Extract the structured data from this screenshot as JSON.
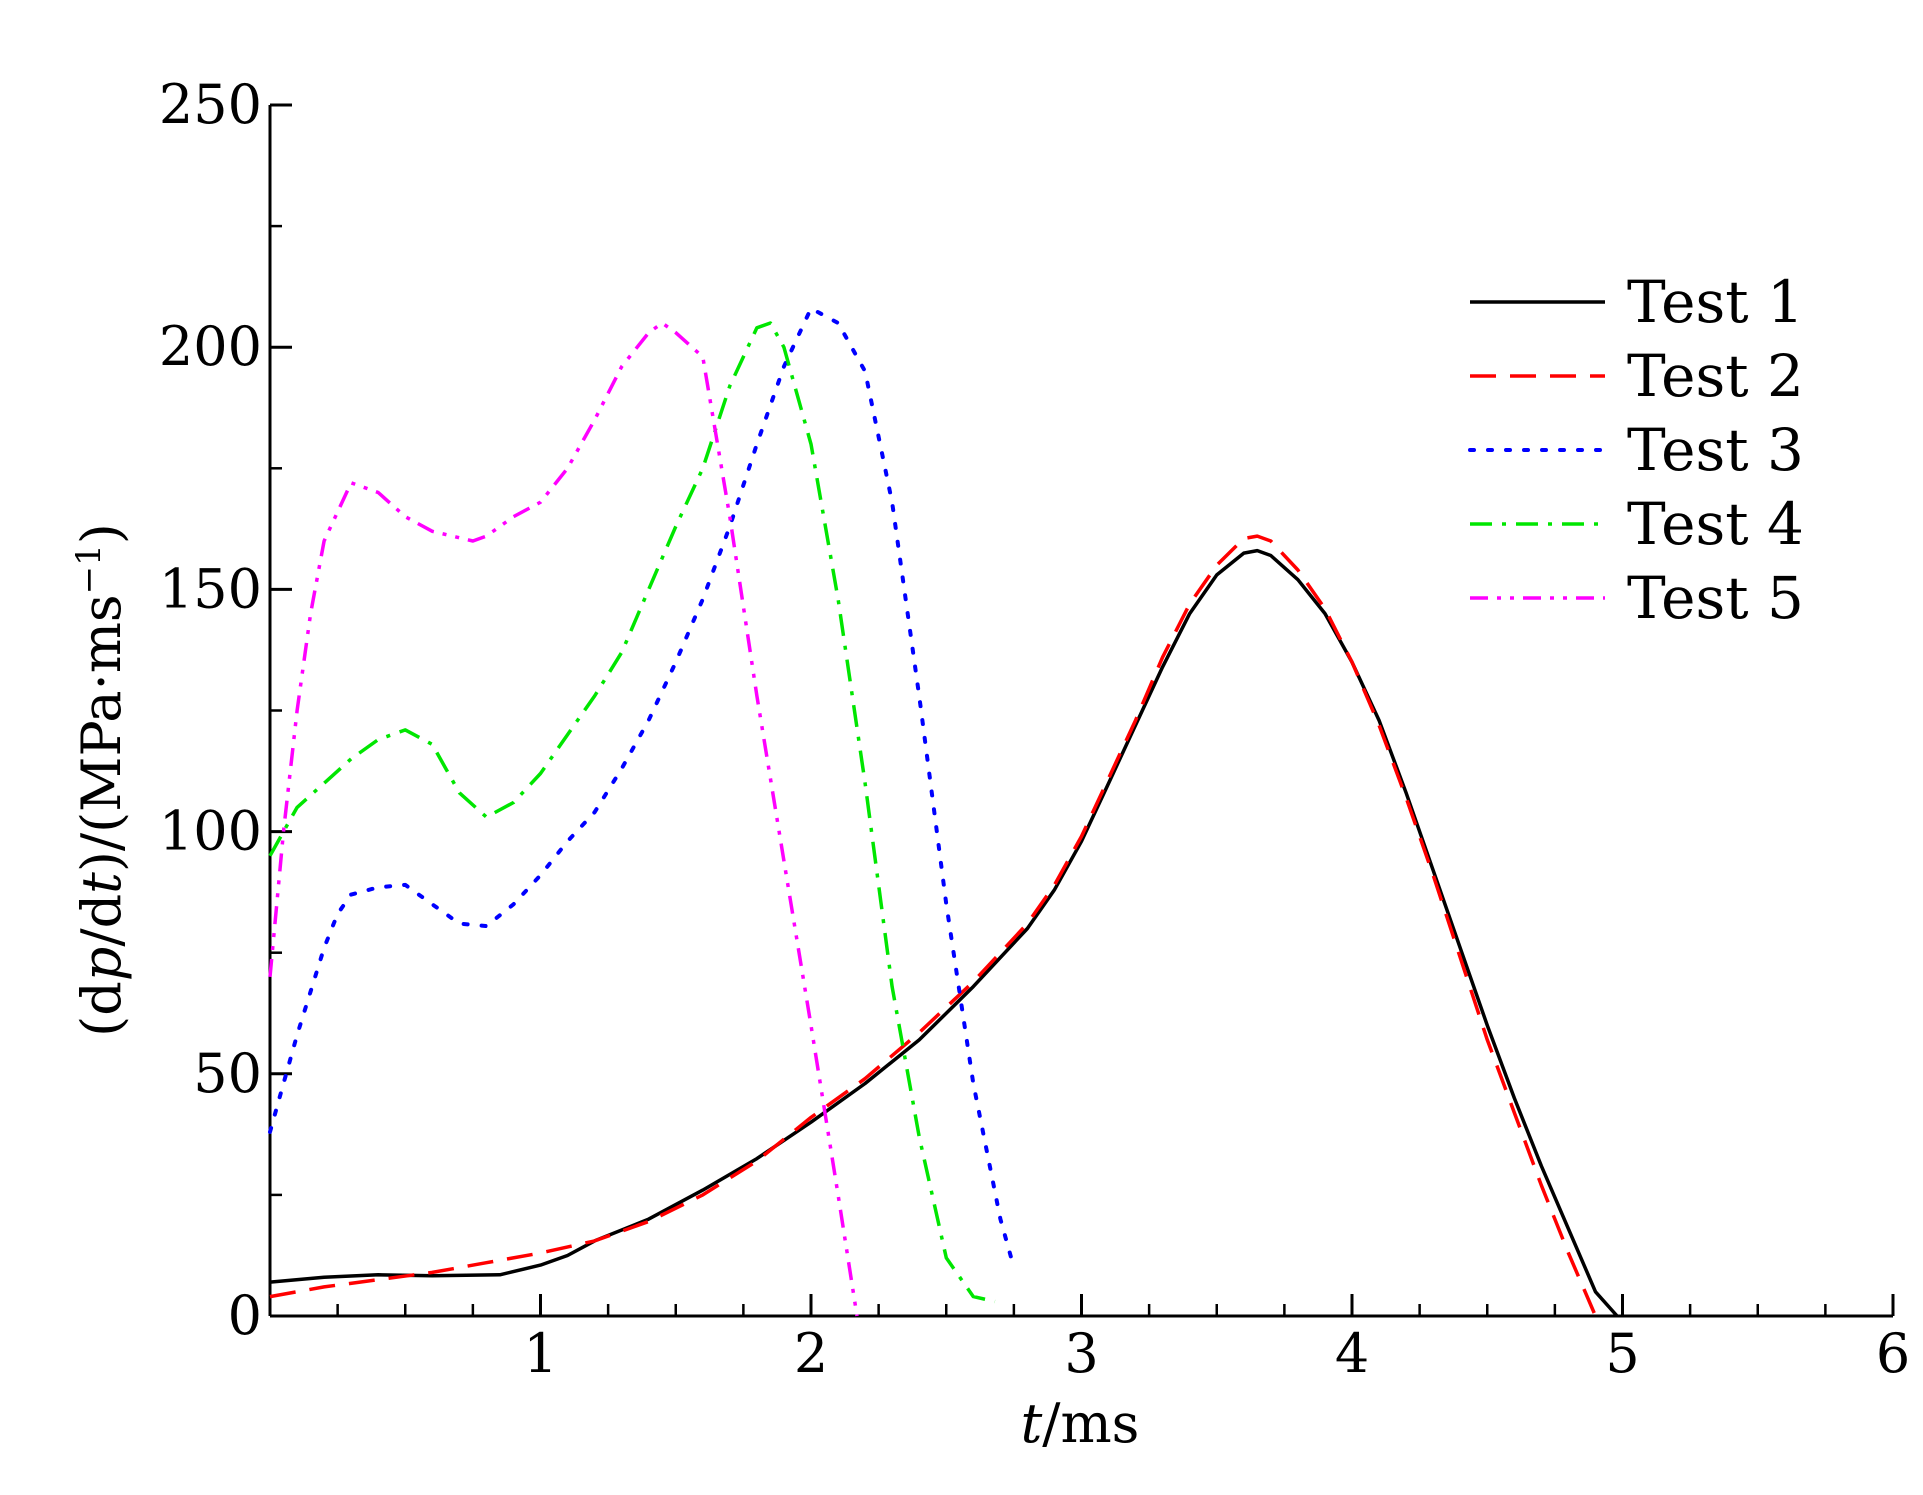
{
  "chart_data": {
    "type": "line",
    "title": "",
    "xlabel": {
      "italic": "t",
      "rest": "/ms"
    },
    "ylabel": {
      "part1": "(d",
      "italic1": "p",
      "part2": "/d",
      "italic2": "t",
      "part3": ")/(MPa·ms",
      "sup": "−1",
      "part4": ")"
    },
    "xlim": [
      0,
      6
    ],
    "ylim": [
      0,
      250
    ],
    "xticks": [
      1,
      2,
      3,
      4,
      5,
      6
    ],
    "yticks": [
      0,
      50,
      100,
      150,
      200,
      250
    ],
    "x_minor_step": 0.25,
    "y_minor_step": 25,
    "grid": false,
    "legend_position": "top-right",
    "series": [
      {
        "name": "Test 1",
        "color": "#000000",
        "dash": "solid",
        "points": [
          [
            0,
            7
          ],
          [
            0.2,
            8
          ],
          [
            0.4,
            8.5
          ],
          [
            0.6,
            8.3
          ],
          [
            0.85,
            8.5
          ],
          [
            1.0,
            10.5
          ],
          [
            1.1,
            12.5
          ],
          [
            1.2,
            15.5
          ],
          [
            1.4,
            20
          ],
          [
            1.6,
            26
          ],
          [
            1.8,
            32.5
          ],
          [
            2.0,
            40
          ],
          [
            2.2,
            48
          ],
          [
            2.4,
            57
          ],
          [
            2.6,
            68
          ],
          [
            2.8,
            80
          ],
          [
            2.9,
            88
          ],
          [
            3.0,
            98
          ],
          [
            3.1,
            110
          ],
          [
            3.2,
            122
          ],
          [
            3.3,
            134
          ],
          [
            3.4,
            145
          ],
          [
            3.5,
            153
          ],
          [
            3.6,
            157.5
          ],
          [
            3.65,
            158
          ],
          [
            3.7,
            157
          ],
          [
            3.8,
            152
          ],
          [
            3.9,
            145
          ],
          [
            4.0,
            135
          ],
          [
            4.1,
            123
          ],
          [
            4.2,
            108
          ],
          [
            4.3,
            92
          ],
          [
            4.4,
            76
          ],
          [
            4.5,
            60
          ],
          [
            4.6,
            45
          ],
          [
            4.7,
            31
          ],
          [
            4.8,
            18
          ],
          [
            4.9,
            5
          ],
          [
            4.98,
            0
          ]
        ]
      },
      {
        "name": "Test 2",
        "color": "#ff0000",
        "dash": "dashed",
        "points": [
          [
            0,
            4
          ],
          [
            0.2,
            6
          ],
          [
            0.4,
            7.5
          ],
          [
            0.6,
            9
          ],
          [
            0.8,
            11
          ],
          [
            1.0,
            13
          ],
          [
            1.2,
            15.5
          ],
          [
            1.4,
            19.5
          ],
          [
            1.6,
            25
          ],
          [
            1.8,
            32
          ],
          [
            2.0,
            41
          ],
          [
            2.2,
            49
          ],
          [
            2.4,
            58.5
          ],
          [
            2.6,
            69
          ],
          [
            2.8,
            81
          ],
          [
            2.9,
            89
          ],
          [
            3.0,
            99
          ],
          [
            3.1,
            111
          ],
          [
            3.2,
            123
          ],
          [
            3.3,
            136
          ],
          [
            3.4,
            147
          ],
          [
            3.5,
            155
          ],
          [
            3.6,
            160.5
          ],
          [
            3.65,
            161
          ],
          [
            3.7,
            160
          ],
          [
            3.8,
            154
          ],
          [
            3.9,
            146
          ],
          [
            4.0,
            135
          ],
          [
            4.1,
            122
          ],
          [
            4.2,
            107
          ],
          [
            4.3,
            91
          ],
          [
            4.4,
            74
          ],
          [
            4.5,
            57
          ],
          [
            4.6,
            42
          ],
          [
            4.7,
            27
          ],
          [
            4.8,
            13
          ],
          [
            4.9,
            0
          ]
        ]
      },
      {
        "name": "Test 3",
        "color": "#0000ff",
        "dash": "dotted",
        "points": [
          [
            0,
            38
          ],
          [
            0.05,
            48
          ],
          [
            0.1,
            58
          ],
          [
            0.15,
            67
          ],
          [
            0.2,
            76
          ],
          [
            0.25,
            83
          ],
          [
            0.3,
            87
          ],
          [
            0.4,
            88.5
          ],
          [
            0.5,
            89
          ],
          [
            0.55,
            87
          ],
          [
            0.6,
            85
          ],
          [
            0.7,
            81
          ],
          [
            0.8,
            80.5
          ],
          [
            0.9,
            85
          ],
          [
            1.0,
            91
          ],
          [
            1.1,
            98
          ],
          [
            1.2,
            104
          ],
          [
            1.3,
            113
          ],
          [
            1.4,
            123
          ],
          [
            1.5,
            135
          ],
          [
            1.6,
            148
          ],
          [
            1.7,
            163
          ],
          [
            1.8,
            180
          ],
          [
            1.9,
            196
          ],
          [
            2.0,
            208
          ],
          [
            2.1,
            205
          ],
          [
            2.2,
            195
          ],
          [
            2.3,
            168
          ],
          [
            2.4,
            128
          ],
          [
            2.5,
            85
          ],
          [
            2.6,
            48
          ],
          [
            2.7,
            20
          ],
          [
            2.75,
            10
          ]
        ]
      },
      {
        "name": "Test 4",
        "color": "#00e600",
        "dash": "dashdot",
        "points": [
          [
            0,
            95
          ],
          [
            0.05,
            100
          ],
          [
            0.1,
            105
          ],
          [
            0.2,
            110
          ],
          [
            0.3,
            115
          ],
          [
            0.4,
            119
          ],
          [
            0.5,
            121
          ],
          [
            0.6,
            118
          ],
          [
            0.65,
            113
          ],
          [
            0.7,
            108
          ],
          [
            0.8,
            103
          ],
          [
            0.9,
            106
          ],
          [
            1.0,
            112
          ],
          [
            1.1,
            120
          ],
          [
            1.2,
            128
          ],
          [
            1.3,
            137
          ],
          [
            1.4,
            150
          ],
          [
            1.5,
            163
          ],
          [
            1.6,
            175
          ],
          [
            1.7,
            192
          ],
          [
            1.8,
            204
          ],
          [
            1.85,
            205
          ],
          [
            1.9,
            200
          ],
          [
            2.0,
            180
          ],
          [
            2.1,
            148
          ],
          [
            2.2,
            110
          ],
          [
            2.3,
            68
          ],
          [
            2.4,
            37
          ],
          [
            2.5,
            12
          ],
          [
            2.6,
            4
          ],
          [
            2.68,
            3
          ]
        ]
      },
      {
        "name": "Test 5",
        "color": "#ff00ff",
        "dash": "dashdotdot",
        "points": [
          [
            0,
            70
          ],
          [
            0.05,
            100
          ],
          [
            0.1,
            125
          ],
          [
            0.15,
            145
          ],
          [
            0.2,
            160
          ],
          [
            0.3,
            172
          ],
          [
            0.4,
            170
          ],
          [
            0.5,
            165
          ],
          [
            0.6,
            162
          ],
          [
            0.75,
            160
          ],
          [
            0.8,
            161
          ],
          [
            0.9,
            165
          ],
          [
            1.0,
            168
          ],
          [
            1.1,
            175
          ],
          [
            1.2,
            185
          ],
          [
            1.3,
            196
          ],
          [
            1.4,
            203
          ],
          [
            1.45,
            205
          ],
          [
            1.5,
            203
          ],
          [
            1.6,
            198
          ],
          [
            1.7,
            165
          ],
          [
            1.8,
            128
          ],
          [
            1.9,
            94
          ],
          [
            2.0,
            60
          ],
          [
            2.1,
            25
          ],
          [
            2.17,
            0
          ]
        ]
      }
    ]
  }
}
